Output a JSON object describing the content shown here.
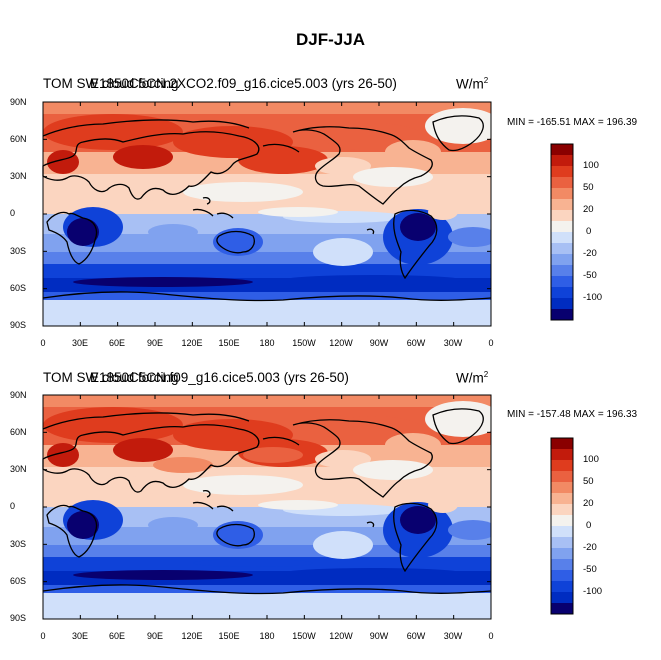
{
  "figure_title": "DJF-JJA",
  "units": "W/m",
  "units_superscript": "2",
  "lat_labels": [
    "90N",
    "60N",
    "30N",
    "0",
    "30S",
    "60S",
    "90S"
  ],
  "lon_labels": [
    "0",
    "30E",
    "60E",
    "90E",
    "120E",
    "150E",
    "180",
    "150W",
    "120W",
    "90W",
    "60W",
    "30W",
    "0"
  ],
  "colorbar": {
    "colors": [
      "#08006f",
      "#002cc1",
      "#0f42d8",
      "#2f5ee6",
      "#5880ea",
      "#80a2ef",
      "#a8c0f4",
      "#d0e0fa",
      "#f4f2ee",
      "#fbd5c0",
      "#f8b392",
      "#f28a64",
      "#ea6140",
      "#df3c1e",
      "#c21b0c",
      "#8a0000"
    ],
    "labels": [
      "100",
      "50",
      "20",
      "0",
      "-20",
      "-50",
      "-100"
    ]
  },
  "panels": [
    {
      "title": "TOM SW cloud forcing",
      "case_title": "E1850C5CN.2XCO2.f09_g16.cice5.003 (yrs 26-50)",
      "stats": "MIN = -165.51 MAX = 196.39"
    },
    {
      "title": "TOM SW cloud forcing",
      "case_title": "E1850C5CN.f09_g16.cice5.003 (yrs 26-50)",
      "stats": "MIN = -157.48 MAX = 196.33"
    }
  ]
}
